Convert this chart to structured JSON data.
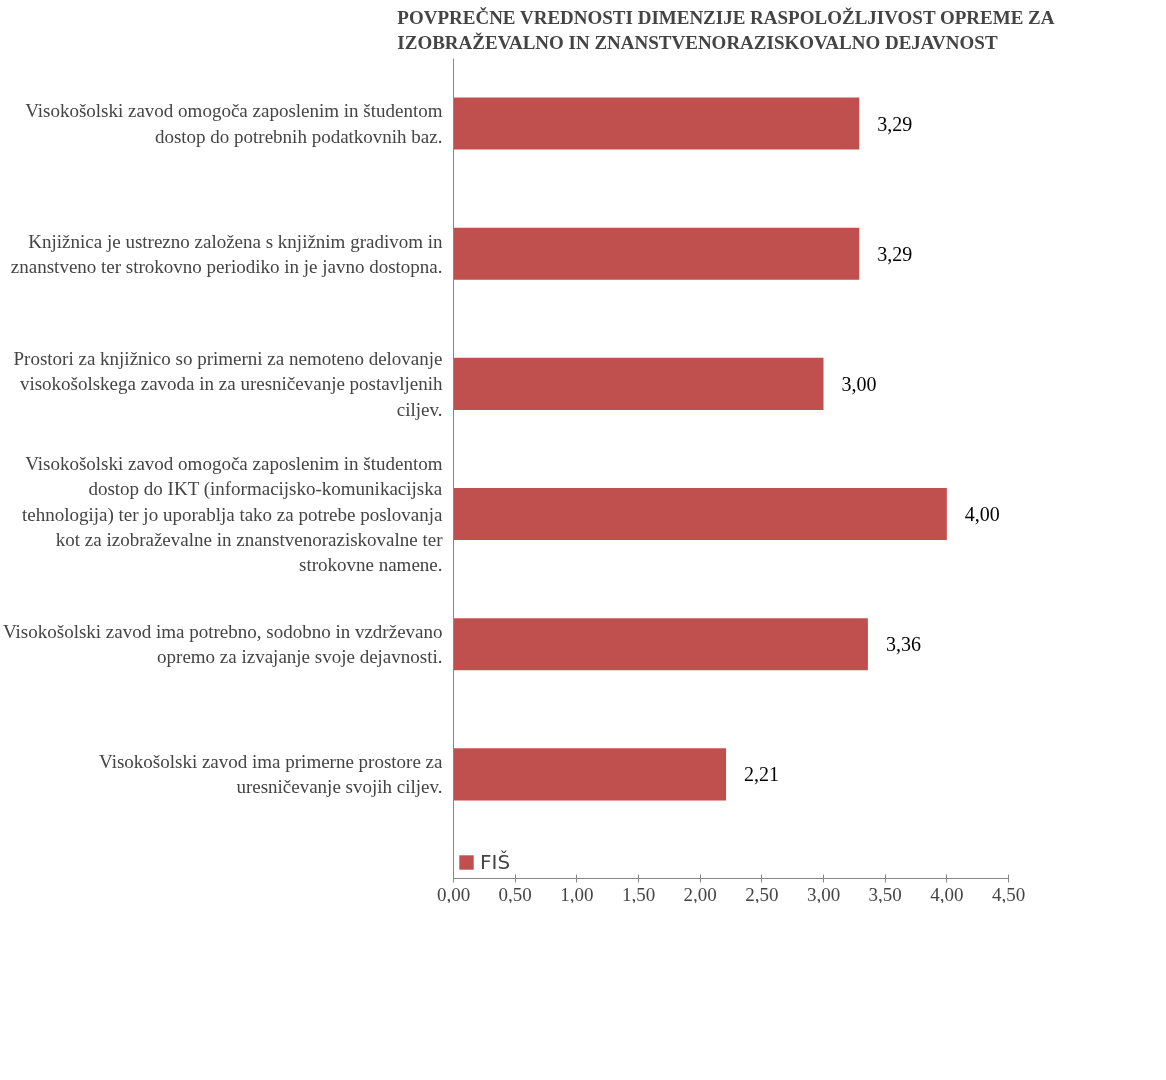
{
  "chart_data": {
    "type": "bar",
    "orientation": "horizontal",
    "title": "POVPREČNE VREDNOSTI  DIMENZIJE RASPOLOŽLJIVOST  OPREME ZA\nIZOBRAŽEVALNO  IN ZNANSTVENORAZISKOVALNO  DEJAVNOST",
    "categories": [
      "Visokošolski zavod omogoča zaposlenim in študentom\ndostop do potrebnih podatkovnih baz.",
      "Knjižnica je ustrezno založena s knjižnim gradivom in\nznanstveno ter strokovno periodiko in je javno dostopna.",
      "Prostori za knjižnico so primerni za nemoteno delovanje\nvisokošolskega zavoda in za uresničevanje postavljenih\nciljev.",
      "Visokošolski zavod omogoča zaposlenim in študentom\ndostop do IKT (informacijsko-komunikacijska\ntehnologija) ter jo uporablja tako za potrebe poslovanja\nkot za izobraževalne in znanstvenoraziskovalne ter\nstrokovne namene.",
      "Visokošolski zavod ima potrebno, sodobno in vzdrževano\nopremo za izvajanje svoje dejavnosti.",
      "Visokošolski zavod ima primerne prostore za\nuresničevanje svojih ciljev."
    ],
    "series": [
      {
        "name": "FIŠ",
        "color": "#c0504d",
        "values": [
          3.29,
          3.29,
          3.0,
          4.0,
          3.36,
          2.21
        ],
        "value_labels": [
          "3,29",
          "3,29",
          "3,00",
          "4,00",
          "3,36",
          "2,21"
        ]
      }
    ],
    "xlim": [
      0,
      4.5
    ],
    "xticks": [
      {
        "value": 0,
        "label": "0,00"
      },
      {
        "value": 0.5,
        "label": "0,50"
      },
      {
        "value": 1,
        "label": "1,00"
      },
      {
        "value": 1.5,
        "label": "1,50"
      },
      {
        "value": 2,
        "label": "2,00"
      },
      {
        "value": 2.5,
        "label": "2,50"
      },
      {
        "value": 3,
        "label": "3,00"
      },
      {
        "value": 3.5,
        "label": "3,50"
      },
      {
        "value": 4,
        "label": "4,00"
      },
      {
        "value": 4.5,
        "label": "4,50"
      }
    ],
    "legend": "bottom left",
    "grid": false
  }
}
